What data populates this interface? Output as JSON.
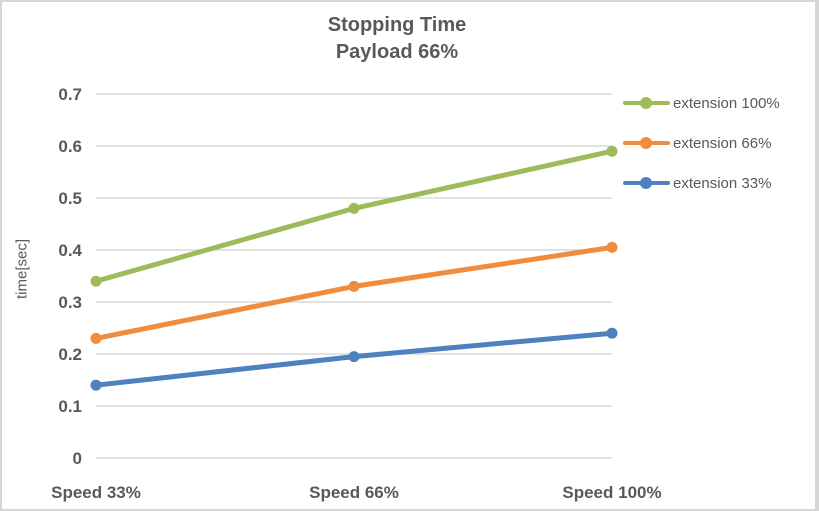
{
  "frame": {
    "background": "#ffffff",
    "border_color": "#d6d6d6"
  },
  "chart_data": {
    "type": "line",
    "title": "Stopping Time",
    "subtitle": "Payload 66%",
    "xlabel": "",
    "ylabel": "time[sec]",
    "categories": [
      "Speed 33%",
      "Speed 66%",
      "Speed 100%"
    ],
    "series": [
      {
        "name": "extension 100%",
        "color": "#9fba59",
        "values": [
          0.34,
          0.48,
          0.59
        ]
      },
      {
        "name": "extension 66%",
        "color": "#f08c3e",
        "values": [
          0.23,
          0.33,
          0.405
        ]
      },
      {
        "name": "extension 33%",
        "color": "#4e81bd",
        "values": [
          0.14,
          0.195,
          0.24
        ]
      }
    ],
    "ylim": [
      0,
      0.7
    ],
    "ytick_step": 0.1,
    "ytick_labels": [
      "0",
      "0.1",
      "0.2",
      "0.3",
      "0.4",
      "0.5",
      "0.6",
      "0.7"
    ],
    "grid": true,
    "legend_position": "right",
    "text_color": "#595959",
    "grid_color": "#d9d9d9",
    "marker": "circle"
  }
}
